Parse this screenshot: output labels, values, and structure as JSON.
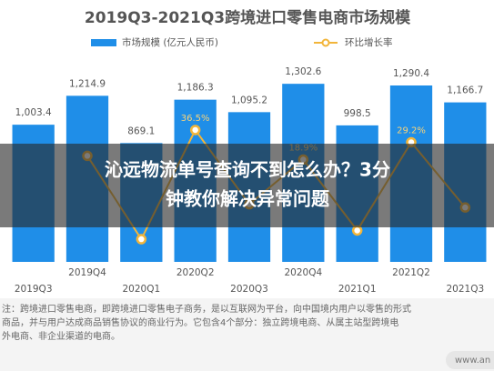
{
  "chart_data": {
    "type": "bar",
    "title": "2019Q3-2021Q3跨境进口零售电商市场规模",
    "categories": [
      "2019Q3",
      "2019Q4",
      "2020Q1",
      "2020Q2",
      "2020Q3",
      "2020Q4",
      "2021Q1",
      "2021Q2",
      "2021Q3"
    ],
    "series": [
      {
        "name": "市场规模 (亿元人民币)",
        "color": "#1f8ee8",
        "type": "bar",
        "values": [
          1003.4,
          1214.9,
          869.1,
          1186.3,
          1095.2,
          1302.6,
          998.5,
          1290.4,
          1166.7
        ],
        "value_labels": [
          "1,003.4",
          "1,214.9",
          "869.1",
          "1,186.3",
          "1,095.2",
          "1,302.6",
          "998.5",
          "1,290.4",
          "1,166.7"
        ]
      },
      {
        "name": "环比增长率",
        "color": "#f2b53a",
        "type": "line",
        "axis": "y2",
        "values": [
          null,
          21.1,
          -28.5,
          36.5,
          -7.7,
          18.9,
          -23.3,
          29.2,
          -9.6
        ],
        "value_labels": [
          null,
          null,
          null,
          "36.5%",
          null,
          "18.9%",
          null,
          "29.2%",
          null
        ]
      }
    ],
    "ylim": [
      0,
      1450
    ],
    "y2lim": [
      -42,
      76
    ]
  },
  "footnote": [
    "注：跨境进口零售电商，即跨境进口零售电子商务，是以互联网为平台，向中国境内用户以零售的形式",
    "商品，并与用户达成商品销售协议的商业行为。它包含4个部分：独立跨境电商、从属主站型跨境电",
    "外电商、非企业渠道的电商。"
  ],
  "banner": [
    "沁远物流单号查询不到怎么办？3分",
    "钟教你解决异常问题"
  ],
  "watermark": "www.an"
}
